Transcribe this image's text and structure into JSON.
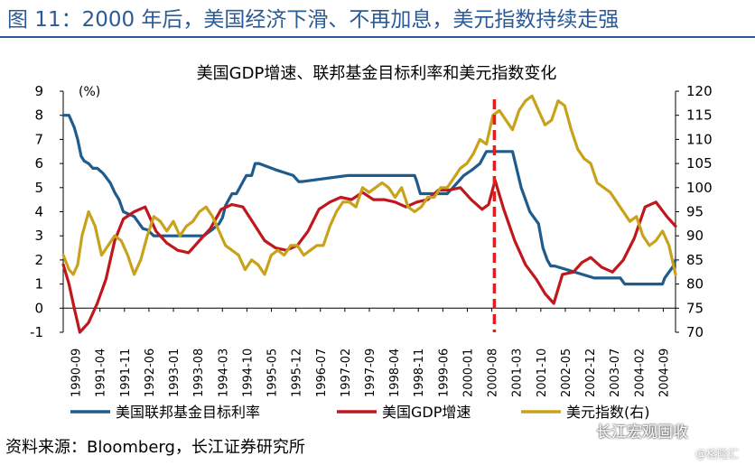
{
  "figure_title": "图 11：2000 年后，美国经济下滑、不再加息，美元指数持续走强",
  "source": "资料来源：Bloomberg，长江证券研究所",
  "watermark": "长江宏观固收",
  "watermark_sub": "@格隆汇",
  "chart_data": {
    "type": "line",
    "title": "美国GDP增速、联邦基金目标利率和美元指数变化",
    "left_axis_unit": "(%)",
    "left_axis": {
      "min": -1,
      "max": 9,
      "ticks": [
        "-1",
        "0",
        "1",
        "2",
        "3",
        "4",
        "5",
        "6",
        "7",
        "8",
        "9"
      ]
    },
    "right_axis": {
      "min": 70,
      "max": 120,
      "ticks": [
        "70",
        "75",
        "80",
        "85",
        "90",
        "95",
        "100",
        "105",
        "110",
        "115",
        "120"
      ]
    },
    "x_start": 1990.667,
    "x_end": 2004.75,
    "x_tick_labels": [
      "1990-09",
      "1991-04",
      "1991-11",
      "1992-06",
      "1993-01",
      "1993-08",
      "1994-03",
      "1994-10",
      "1995-05",
      "1995-12",
      "1996-07",
      "1997-02",
      "1997-09",
      "1998-04",
      "1998-11",
      "1999-06",
      "2000-01",
      "2000-08",
      "2001-03",
      "2001-10",
      "2002-05",
      "2002-12",
      "2003-07",
      "2004-02",
      "2004-09"
    ],
    "marker_line": {
      "label": "2000-08",
      "x": 2000.583,
      "color": "#e02020"
    },
    "series": [
      {
        "name": "美国联邦基金目标利率",
        "axis": "left",
        "color": "#1f5b8c",
        "x": [
          1990.67,
          1990.8,
          1990.92,
          1991.0,
          1991.08,
          1991.15,
          1991.25,
          1991.35,
          1991.45,
          1991.58,
          1991.75,
          1991.85,
          1991.95,
          1992.05,
          1992.3,
          1992.5,
          1992.6,
          1992.75,
          1993.0,
          1993.5,
          1993.9,
          1994.09,
          1994.25,
          1994.33,
          1994.4,
          1994.55,
          1994.65,
          1994.88,
          1995.0,
          1995.08,
          1995.17,
          1995.54,
          1995.96,
          1996.08,
          1996.17,
          1997.21,
          1998.75,
          1998.8,
          1998.88,
          1999.5,
          1999.63,
          1999.88,
          2000.08,
          2000.25,
          2000.4,
          2001.0,
          2001.1,
          2001.2,
          2001.3,
          2001.4,
          2001.5,
          2001.6,
          2001.7,
          2001.8,
          2001.88,
          2001.97,
          2002.88,
          2003.0,
          2003.48,
          2003.58,
          2004.45,
          2004.5,
          2004.6,
          2004.7,
          2004.75
        ],
        "y": [
          8.0,
          8.0,
          7.5,
          7.0,
          6.3,
          6.1,
          6.0,
          5.8,
          5.8,
          5.6,
          5.2,
          4.8,
          4.5,
          4.0,
          3.8,
          3.3,
          3.25,
          3.0,
          3.0,
          3.0,
          3.0,
          3.25,
          3.5,
          3.75,
          4.25,
          4.75,
          4.75,
          5.5,
          5.5,
          6.0,
          6.0,
          5.75,
          5.5,
          5.25,
          5.25,
          5.5,
          5.5,
          5.25,
          4.75,
          4.75,
          5.0,
          5.5,
          5.75,
          6.0,
          6.5,
          6.5,
          5.75,
          5.0,
          4.5,
          4.0,
          3.75,
          3.5,
          2.5,
          2.0,
          1.75,
          1.75,
          1.25,
          1.25,
          1.25,
          1.0,
          1.0,
          1.25,
          1.5,
          1.75,
          2.0
        ]
      },
      {
        "name": "美国GDP增速",
        "axis": "left",
        "color": "#c0171d",
        "x": [
          1990.67,
          1990.8,
          1990.92,
          1991.05,
          1991.25,
          1991.45,
          1991.65,
          1991.85,
          1992.05,
          1992.3,
          1992.55,
          1992.8,
          1993.05,
          1993.3,
          1993.55,
          1993.8,
          1994.05,
          1994.3,
          1994.55,
          1994.8,
          1995.05,
          1995.3,
          1995.55,
          1995.8,
          1996.05,
          1996.3,
          1996.55,
          1996.8,
          1997.05,
          1997.3,
          1997.55,
          1997.8,
          1998.05,
          1998.3,
          1998.55,
          1998.8,
          1999.05,
          1999.3,
          1999.55,
          1999.8,
          2000.05,
          2000.3,
          2000.45,
          2000.6,
          2000.8,
          2001.05,
          2001.3,
          2001.55,
          2001.75,
          2001.95,
          2002.15,
          2002.4,
          2002.6,
          2002.8,
          2003.05,
          2003.3,
          2003.55,
          2003.8,
          2004.05,
          2004.3,
          2004.55,
          2004.75
        ],
        "y": [
          1.8,
          1.0,
          0.0,
          -1.0,
          -0.6,
          0.2,
          1.2,
          2.8,
          3.7,
          4.0,
          4.2,
          3.2,
          2.7,
          2.4,
          2.3,
          2.8,
          3.3,
          4.1,
          4.3,
          4.2,
          3.5,
          2.8,
          2.5,
          2.4,
          2.6,
          3.2,
          4.1,
          4.4,
          4.6,
          4.5,
          4.8,
          4.5,
          4.5,
          4.4,
          4.2,
          4.4,
          4.5,
          4.9,
          4.9,
          5.0,
          4.5,
          4.1,
          4.3,
          5.3,
          4.1,
          2.8,
          1.8,
          1.2,
          0.6,
          0.2,
          1.4,
          1.5,
          1.9,
          2.1,
          1.7,
          1.5,
          2.0,
          2.9,
          4.2,
          4.4,
          3.8,
          3.4
        ]
      },
      {
        "name": "美元指数(右)",
        "axis": "right",
        "color": "#c9a21c",
        "x": [
          1990.67,
          1990.8,
          1990.9,
          1991.0,
          1991.1,
          1991.25,
          1991.4,
          1991.55,
          1991.7,
          1991.85,
          1992.0,
          1992.15,
          1992.3,
          1992.45,
          1992.6,
          1992.75,
          1992.9,
          1993.05,
          1993.2,
          1993.35,
          1993.5,
          1993.65,
          1993.8,
          1993.95,
          1994.1,
          1994.25,
          1994.4,
          1994.55,
          1994.7,
          1994.85,
          1995.0,
          1995.15,
          1995.3,
          1995.45,
          1995.6,
          1995.75,
          1995.9,
          1996.05,
          1996.2,
          1996.35,
          1996.5,
          1996.65,
          1996.8,
          1996.95,
          1997.1,
          1997.25,
          1997.4,
          1997.55,
          1997.7,
          1997.85,
          1998.0,
          1998.15,
          1998.3,
          1998.45,
          1998.6,
          1998.75,
          1998.9,
          1999.05,
          1999.2,
          1999.35,
          1999.5,
          1999.65,
          1999.8,
          1999.95,
          2000.1,
          2000.25,
          2000.4,
          2000.55,
          2000.7,
          2000.85,
          2001.0,
          2001.15,
          2001.3,
          2001.45,
          2001.6,
          2001.75,
          2001.9,
          2002.05,
          2002.2,
          2002.35,
          2002.5,
          2002.65,
          2002.8,
          2002.95,
          2003.1,
          2003.25,
          2003.4,
          2003.55,
          2003.7,
          2003.85,
          2004.0,
          2004.15,
          2004.3,
          2004.45,
          2004.6,
          2004.75
        ],
        "y": [
          86,
          83,
          82,
          84,
          90,
          95,
          92,
          86,
          88,
          90,
          89,
          86,
          82,
          85,
          90,
          94,
          93,
          91,
          93,
          90,
          92,
          93,
          95,
          96,
          94,
          91,
          88,
          87,
          86,
          83,
          85,
          84,
          82,
          86,
          87,
          86,
          88,
          88,
          86,
          87,
          88,
          88,
          92,
          95,
          97,
          97,
          96,
          100,
          99,
          100,
          101,
          100,
          98,
          100,
          96,
          95,
          96,
          98,
          98,
          100,
          100,
          102,
          104,
          105,
          107,
          110,
          109,
          115,
          116,
          114,
          112,
          116,
          118,
          119,
          116,
          113,
          114,
          118,
          117,
          112,
          108,
          106,
          105,
          101,
          100,
          99,
          97,
          95,
          93,
          94,
          90,
          88,
          89,
          91,
          88,
          82
        ]
      }
    ],
    "legend": [
      {
        "label": "美国联邦基金目标利率",
        "color": "#1f5b8c"
      },
      {
        "label": "美国GDP增速",
        "color": "#c0171d"
      },
      {
        "label": "美元指数(右)",
        "color": "#c9a21c"
      }
    ]
  }
}
